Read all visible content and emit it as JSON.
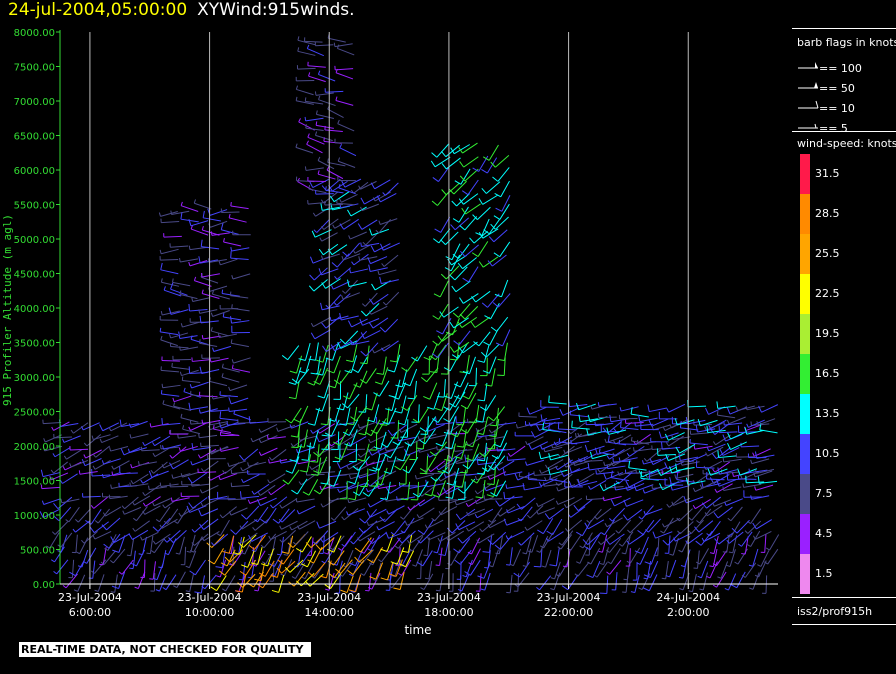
{
  "header": {
    "date": "24-jul-2004,05:00:00",
    "product": "XYWind:915winds."
  },
  "chart_data": {
    "type": "scatter",
    "subtype": "wind-barb time-height profile",
    "xlabel": "time",
    "ylabel": "915 Profiler Altitude (m agl)",
    "ylim": [
      0,
      8000
    ],
    "yticks": [
      "0.00",
      "500.00",
      "1000.00",
      "1500.00",
      "2000.00",
      "2500.00",
      "3000.00",
      "3500.00",
      "4000.00",
      "4500.00",
      "5000.00",
      "5500.00",
      "6000.00",
      "6500.00",
      "7000.00",
      "7500.00",
      "8000.00"
    ],
    "xticks": [
      {
        "date": "23-Jul-2004",
        "time": "6:00:00"
      },
      {
        "date": "23-Jul-2004",
        "time": "10:00:00"
      },
      {
        "date": "23-Jul-2004",
        "time": "14:00:00"
      },
      {
        "date": "23-Jul-2004",
        "time": "18:00:00"
      },
      {
        "date": "23-Jul-2004",
        "time": "22:00:00"
      },
      {
        "date": "24-Jul-2004",
        "time": "2:00:00"
      }
    ],
    "x_range_hours": [
      5.0,
      29.0
    ],
    "vertical_grid": true,
    "wind_regimes": [
      {
        "t0": 5.2,
        "t1": 29.0,
        "z0": 150,
        "z1": 700,
        "speed": 8,
        "dir": 200
      },
      {
        "t0": 10.5,
        "t1": 17.0,
        "z0": 150,
        "z1": 700,
        "speed": 25,
        "dir": 210
      },
      {
        "t0": 5.0,
        "t1": 29.0,
        "z0": 750,
        "z1": 1200,
        "speed": 9,
        "dir": 230
      },
      {
        "t0": 5.0,
        "t1": 29.0,
        "z0": 1250,
        "z1": 2500,
        "speed": 8,
        "dir": 250
      },
      {
        "t0": 13.0,
        "t1": 20.0,
        "z0": 1500,
        "z1": 3500,
        "speed": 15,
        "dir": 200
      },
      {
        "t0": 14.0,
        "t1": 16.5,
        "z0": 3500,
        "z1": 6000,
        "speed": 10,
        "dir": 240
      },
      {
        "t0": 18.0,
        "t1": 20.0,
        "z0": 3500,
        "z1": 6400,
        "speed": 14,
        "dir": 220
      },
      {
        "t0": 9.0,
        "t1": 11.5,
        "z0": 2000,
        "z1": 5500,
        "speed": 8,
        "dir": 270
      },
      {
        "t0": 13.5,
        "t1": 15.0,
        "z0": 5500,
        "z1": 7900,
        "speed": 7,
        "dir": 280
      },
      {
        "t0": 21.0,
        "t1": 29.0,
        "z0": 1500,
        "z1": 2600,
        "speed": 11,
        "dir": 260
      }
    ],
    "barb_legend": {
      "title": "barb flags in knots",
      "items": [
        "== 100",
        "== 50",
        "== 10",
        "== 5"
      ]
    },
    "color_legend": {
      "title": "wind-speed: knots",
      "levels": [
        "31.5",
        "28.5",
        "25.5",
        "22.5",
        "19.5",
        "16.5",
        "13.5",
        "10.5",
        "7.5",
        "4.5",
        "1.5"
      ],
      "colors": [
        "#ff1a4a",
        "#ff8a00",
        "#ffa500",
        "#ffff00",
        "#aaee33",
        "#33ee33",
        "#00ffff",
        "#4444ff",
        "#4a4a88",
        "#9a20ff",
        "#ee88ee"
      ]
    },
    "source": "iss2/prof915h"
  },
  "notice": "REAL-TIME DATA, NOT CHECKED FOR QUALITY"
}
